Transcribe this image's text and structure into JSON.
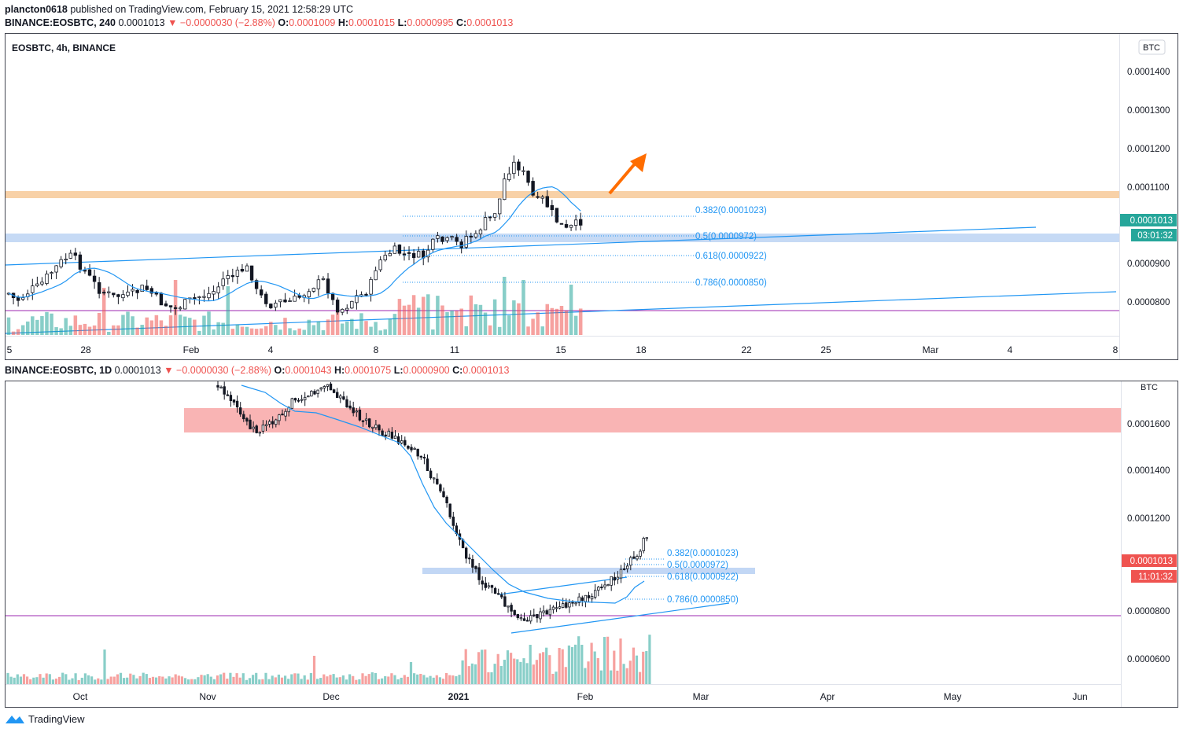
{
  "header": {
    "publisher": "plancton0618",
    "published_text": "published on TradingView.com, February 15, 2021 12:58:29 UTC",
    "line1_symbol": "BINANCE:EOSBTC, 240",
    "line1_last": "0.0001013",
    "line1_change": "−0.0000030 (−2.88%)",
    "line1_o": "0.0001009",
    "line1_h": "0.0001015",
    "line1_l": "0.0000995",
    "line1_c": "0.0001013"
  },
  "panel1": {
    "legend": "EOSBTC, 4h, BINANCE",
    "currency": "BTC",
    "price_ticks": [
      "0.0001400",
      "0.0001300",
      "0.0001200",
      "0.0001100",
      "0.0000900",
      "0.0000800"
    ],
    "last_price_label": "0.0001013",
    "countdown": "03:01:32",
    "x_ticks": [
      "5",
      "28",
      "Feb",
      "4",
      "8",
      "11",
      "15",
      "18",
      "22",
      "25",
      "Mar",
      "4",
      "8"
    ],
    "fib_labels": [
      "0.382(0.0001023)",
      "0.5(0.0000972)",
      "0.618(0.0000922)",
      "0.786(0.0000850)"
    ]
  },
  "panel2": {
    "legend_symbol": "BINANCE:EOSBTC, 1D",
    "legend_last": "0.0001013",
    "legend_change": "−0.0000030 (−2.88%)",
    "legend_o": "0.0001043",
    "legend_h": "0.0001075",
    "legend_l": "0.0000900",
    "legend_c": "0.0001013",
    "currency": "BTC",
    "price_ticks": [
      "0.0001600",
      "0.0001400",
      "0.0001200",
      "0.0000800",
      "0.0000600"
    ],
    "last_price_label": "0.0001013",
    "countdown": "11:01:32",
    "x_ticks": [
      "Oct",
      "Nov",
      "Dec",
      "2021",
      "Feb",
      "Mar",
      "Apr",
      "May",
      "Jun"
    ],
    "fib_labels": [
      "0.382(0.0001023)",
      "0.5(0.0000972)",
      "0.618(0.0000922)",
      "0.786(0.0000850)"
    ]
  },
  "footer": {
    "brand": "TradingView"
  },
  "colors": {
    "up": "#26a69a",
    "down": "#ef5350",
    "ma": "#2196f3",
    "resistance": "#f5c28a",
    "support": "#b3cdf2",
    "red_zone": "#f7a1a1",
    "horizontal": "#9c27b0",
    "arrow": "#ff6d00"
  },
  "chart_data": [
    {
      "type": "candlestick",
      "title": "EOSBTC, 4h, BINANCE",
      "ylim": [
        7.6e-05,
        0.000148
      ],
      "x_range": [
        "Jan 25",
        "Mar 8"
      ],
      "fibonacci": [
        {
          "level": "0.382",
          "price": 0.0001023
        },
        {
          "level": "0.5",
          "price": 9.72e-05
        },
        {
          "level": "0.618",
          "price": 9.22e-05
        },
        {
          "level": "0.786",
          "price": 8.5e-05
        }
      ],
      "zones": [
        {
          "name": "resistance",
          "from": 0.000107,
          "to": 0.0001083
        },
        {
          "name": "support",
          "from": 9.55e-05,
          "to": 9.75e-05
        }
      ],
      "horizontal_line": 7.78e-05,
      "last_price": 0.0001013
    },
    {
      "type": "candlestick",
      "title": "BINANCE:EOSBTC, 1D",
      "ylim": [
        5.3e-05,
        0.000179
      ],
      "x_range": [
        "Sep 2020",
        "Jun 2021"
      ],
      "fibonacci": [
        {
          "level": "0.382",
          "price": 0.0001023
        },
        {
          "level": "0.5",
          "price": 9.72e-05
        },
        {
          "level": "0.618",
          "price": 9.22e-05
        },
        {
          "level": "0.786",
          "price": 8.5e-05
        }
      ],
      "zones": [
        {
          "name": "red_zone",
          "from": 0.000156,
          "to": 0.000166
        },
        {
          "name": "support",
          "from": 9.55e-05,
          "to": 9.75e-05
        }
      ],
      "horizontal_line": 7.78e-05,
      "last_price": 0.0001013
    }
  ]
}
